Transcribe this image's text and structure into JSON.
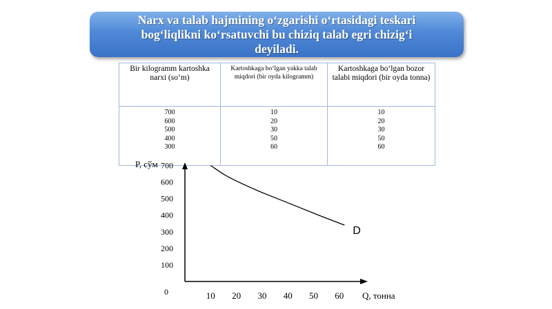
{
  "banner": {
    "line1": "Narx va talab hajmining o‘zgarishi o‘rtasidagi teskari",
    "line2": "bog‘liqlikni ko‘rsatuvchi bu chiziq talab egri chizig‘i",
    "line3": "deyiladi."
  },
  "table": {
    "headers": [
      "Bir kilogramm kartoshka narxi (so‘m)",
      "Kartoshkaga bo‘lgan yakka talab miqdori (bir oyda kilogramm)",
      "Kartoshkaga bo‘lgan bozor talabi miqdori (bir oyda tonna)"
    ],
    "columns": [
      [
        "700",
        "600",
        "500",
        "400",
        "300"
      ],
      [
        "10",
        "20",
        "30",
        "50",
        "60"
      ],
      [
        "10",
        "20",
        "30",
        "50",
        "60"
      ]
    ]
  },
  "chart_data": {
    "type": "line",
    "title": "",
    "xlabel": "Q, тонна",
    "ylabel": "P, сўм",
    "origin_label": "0",
    "x_ticks": [
      "10",
      "20",
      "30",
      "40",
      "50",
      "60"
    ],
    "y_ticks": [
      "100",
      "200",
      "300",
      "400",
      "500",
      "600",
      "700"
    ],
    "xlim": [
      0,
      70
    ],
    "ylim": [
      0,
      750
    ],
    "series": [
      {
        "name": "D",
        "points": [
          [
            10,
            700
          ],
          [
            17,
            630
          ],
          [
            28,
            550
          ],
          [
            40,
            475
          ],
          [
            52,
            400
          ],
          [
            62,
            340
          ]
        ]
      }
    ],
    "curve_label": "D",
    "grid": false,
    "line_color": "#000000"
  }
}
